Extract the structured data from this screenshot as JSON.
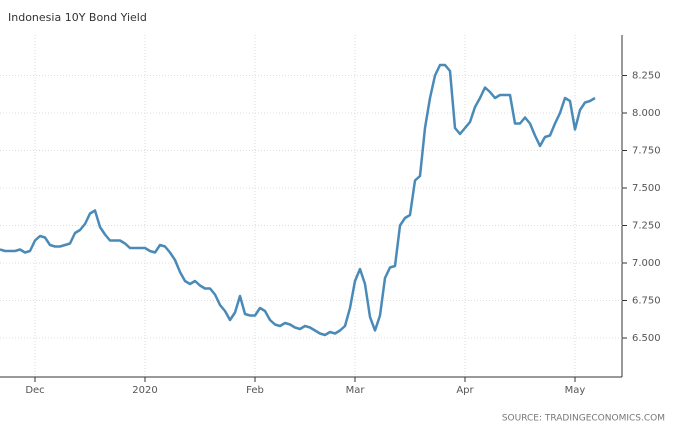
{
  "chart_data": {
    "type": "line",
    "title": "Indonesia 10Y Bond Yield",
    "source": "SOURCE: TRADINGECONOMICS.COM",
    "categories": [
      null,
      null,
      null,
      null,
      null,
      null,
      null,
      "Dec",
      null,
      null,
      null,
      null,
      null,
      null,
      null,
      null,
      null,
      null,
      null,
      null,
      null,
      null,
      null,
      null,
      null,
      null,
      null,
      null,
      null,
      "2020",
      null,
      null,
      null,
      null,
      null,
      null,
      null,
      null,
      null,
      null,
      null,
      null,
      null,
      null,
      null,
      null,
      null,
      null,
      null,
      null,
      null,
      "Feb",
      null,
      null,
      null,
      null,
      null,
      null,
      null,
      null,
      null,
      null,
      null,
      null,
      null,
      null,
      null,
      null,
      null,
      null,
      null,
      "Mar",
      null,
      null,
      null,
      null,
      null,
      null,
      null,
      null,
      null,
      null,
      null,
      null,
      null,
      null,
      null,
      null,
      null,
      null,
      null,
      null,
      null,
      "Apr",
      null,
      null,
      null,
      null,
      null,
      null,
      null,
      null,
      null,
      null,
      null,
      null,
      null,
      null,
      null,
      null,
      null,
      null,
      null,
      null,
      null,
      "May",
      null,
      null,
      null,
      null
    ],
    "values": [
      7.09,
      7.08,
      7.08,
      7.08,
      7.09,
      7.07,
      7.08,
      7.15,
      7.18,
      7.17,
      7.12,
      7.11,
      7.11,
      7.12,
      7.13,
      7.2,
      7.22,
      7.26,
      7.33,
      7.35,
      7.24,
      7.19,
      7.15,
      7.15,
      7.15,
      7.13,
      7.1,
      7.1,
      7.1,
      7.1,
      7.08,
      7.07,
      7.12,
      7.11,
      7.07,
      7.02,
      6.94,
      6.88,
      6.86,
      6.88,
      6.85,
      6.83,
      6.83,
      6.79,
      6.72,
      6.68,
      6.62,
      6.67,
      6.78,
      6.66,
      6.65,
      6.65,
      6.7,
      6.68,
      6.62,
      6.59,
      6.58,
      6.6,
      6.59,
      6.57,
      6.56,
      6.58,
      6.57,
      6.55,
      6.53,
      6.52,
      6.54,
      6.53,
      6.55,
      6.58,
      6.7,
      6.88,
      6.96,
      6.86,
      6.64,
      6.55,
      6.65,
      6.9,
      6.97,
      6.98,
      7.25,
      7.3,
      7.32,
      7.55,
      7.58,
      7.9,
      8.1,
      8.25,
      8.32,
      8.32,
      8.28,
      7.9,
      7.86,
      7.9,
      7.94,
      8.04,
      8.1,
      8.17,
      8.14,
      8.1,
      8.12,
      8.12,
      8.12,
      7.93,
      7.93,
      7.97,
      7.93,
      7.85,
      7.78,
      7.84,
      7.85,
      7.93,
      8.0,
      8.1,
      8.08,
      7.89,
      8.02,
      8.07,
      8.08,
      8.1
    ],
    "color": "#4a8ab8",
    "ylim": [
      6.24,
      8.52
    ],
    "yticks": [
      {
        "value": 6.5,
        "label": "6.500"
      },
      {
        "value": 6.75,
        "label": "6.750"
      },
      {
        "value": 7,
        "label": "7.000"
      },
      {
        "value": 7.25,
        "label": "7.250"
      },
      {
        "value": 7.5,
        "label": "7.500"
      },
      {
        "value": 7.75,
        "label": "7.750"
      },
      {
        "value": 8,
        "label": "8.000"
      },
      {
        "value": 8.25,
        "label": "8.250"
      }
    ],
    "grid": true
  }
}
